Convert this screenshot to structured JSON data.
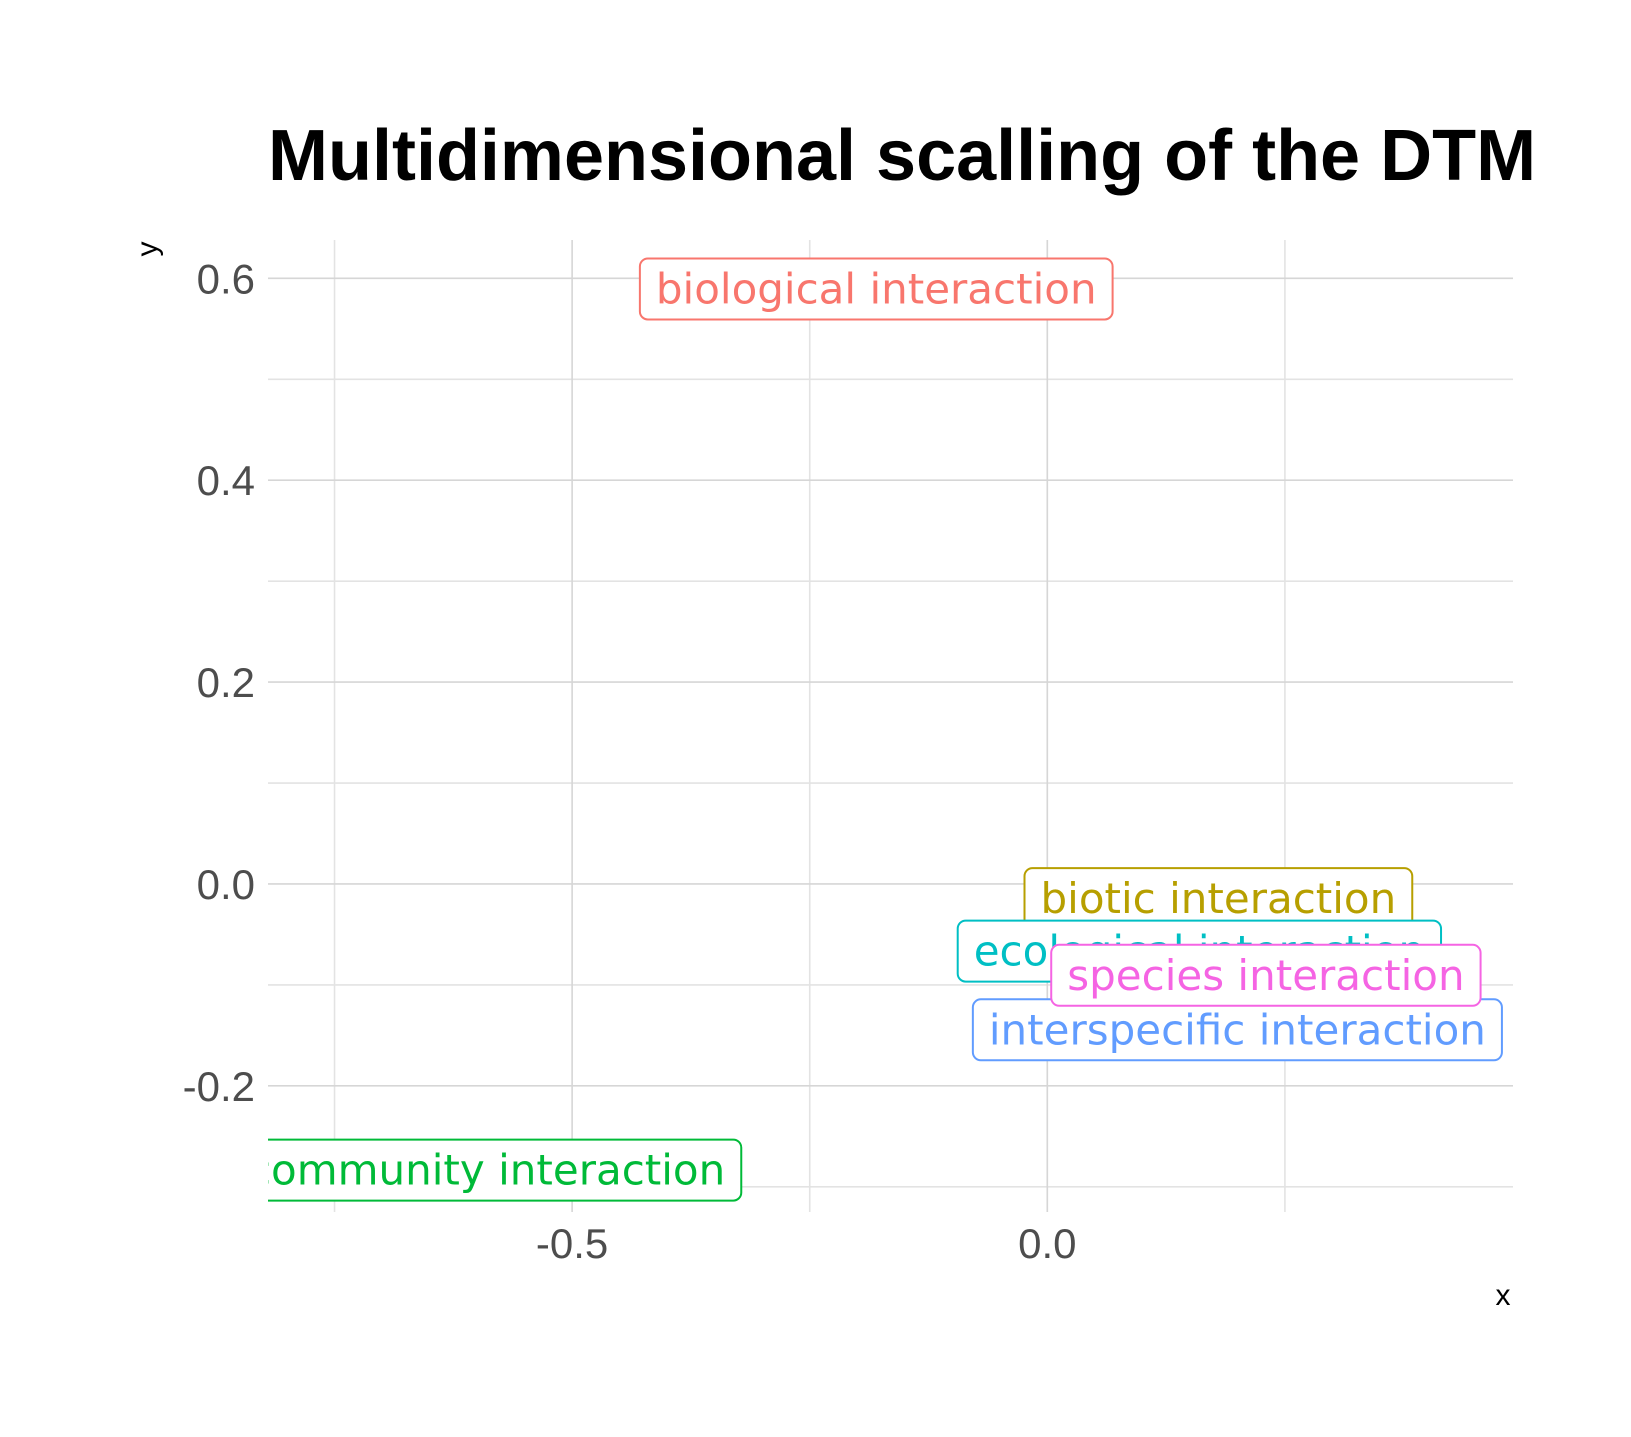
{
  "chart_data": {
    "type": "scatter",
    "title": "Multidimensional scalling of the DTM",
    "xlabel": "x",
    "ylabel": "y",
    "xlim": [
      -0.82,
      0.49
    ],
    "ylim": [
      -0.325,
      0.638
    ],
    "x_ticks": [
      -0.5,
      0.0
    ],
    "x_tick_labels": [
      "-0.5",
      "0.0"
    ],
    "x_minor_ticks": [
      -0.75,
      -0.25,
      0.25
    ],
    "y_ticks": [
      -0.2,
      0.0,
      0.2,
      0.4,
      0.6
    ],
    "y_tick_labels": [
      "-0.2",
      "0.0",
      "0.2",
      "0.4",
      "0.6"
    ],
    "y_minor_ticks": [
      -0.3,
      -0.1,
      0.1,
      0.3,
      0.5
    ],
    "grid": true,
    "legend": "none",
    "points": [
      {
        "label": "biological interaction",
        "x": -0.18,
        "y": 0.59,
        "color": "#F8766D"
      },
      {
        "label": "biotic interaction",
        "x": 0.18,
        "y": -0.014,
        "color": "#B79F00"
      },
      {
        "label": "community interaction",
        "x": -0.59,
        "y": -0.283,
        "color": "#00BA38"
      },
      {
        "label": "ecological interaction",
        "x": 0.16,
        "y": -0.066,
        "color": "#00BFC4"
      },
      {
        "label": "interspecific interaction",
        "x": 0.2,
        "y": -0.144,
        "color": "#619CFF"
      },
      {
        "label": "species interaction",
        "x": 0.23,
        "y": -0.09,
        "color": "#F564E3"
      }
    ]
  }
}
